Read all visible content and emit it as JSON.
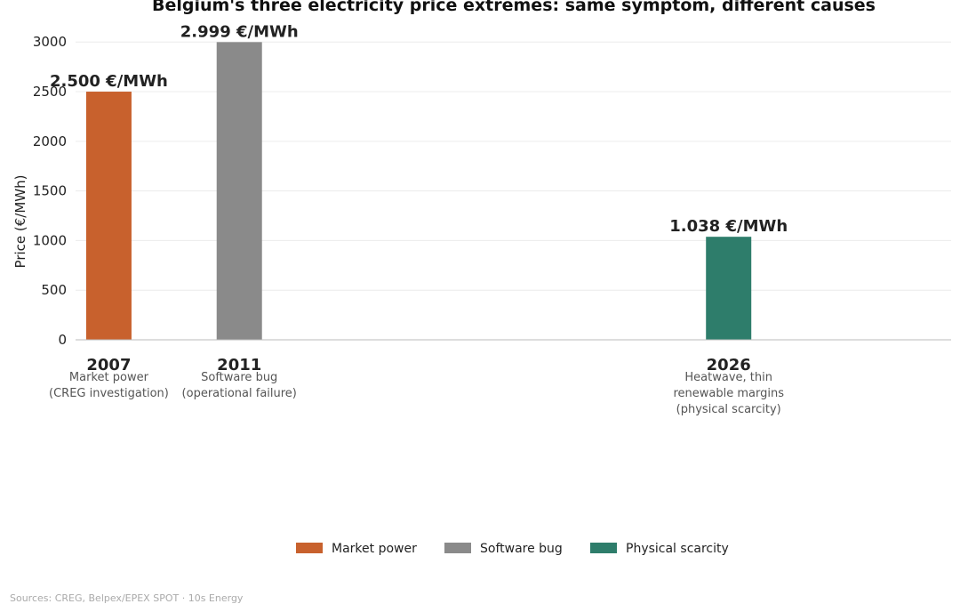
{
  "chart_data": {
    "type": "bar",
    "title": "Belgium's three electricity price extremes: same symptom, different causes",
    "ylabel": "Price (€/MWh)",
    "xlabel": "",
    "ylim": [
      0,
      3280
    ],
    "yticks": [
      0,
      500,
      1000,
      1500,
      2000,
      2500,
      3000
    ],
    "x_axis": "year",
    "grid": true,
    "legend_position": "bottom-center",
    "bars": [
      {
        "year": 2007,
        "label": "2007",
        "value": 2500,
        "value_label": "2.500 €/MWh",
        "description": [
          "Market power",
          "(CREG investigation)"
        ],
        "category": "Market power",
        "color": "#C8612D"
      },
      {
        "year": 2011,
        "label": "2011",
        "value": 2999,
        "value_label": "2.999 €/MWh",
        "description": [
          "Software bug",
          "(operational failure)"
        ],
        "category": "Software bug",
        "color": "#8A8A8A"
      },
      {
        "year": 2026,
        "label": "2026",
        "value": 1038,
        "value_label": "1.038 €/MWh",
        "description": [
          "Heatwave, thin",
          "renewable margins",
          "(physical scarcity)"
        ],
        "category": "Physical scarcity",
        "color": "#2E7D6B"
      }
    ],
    "legend": [
      {
        "label": "Market power",
        "color": "#C8612D"
      },
      {
        "label": "Software bug",
        "color": "#8A8A8A"
      },
      {
        "label": "Physical scarcity",
        "color": "#2E7D6B"
      }
    ]
  },
  "footer": {
    "source": "Sources: CREG, Belpex/EPEX SPOT  ·  10s Energy"
  }
}
